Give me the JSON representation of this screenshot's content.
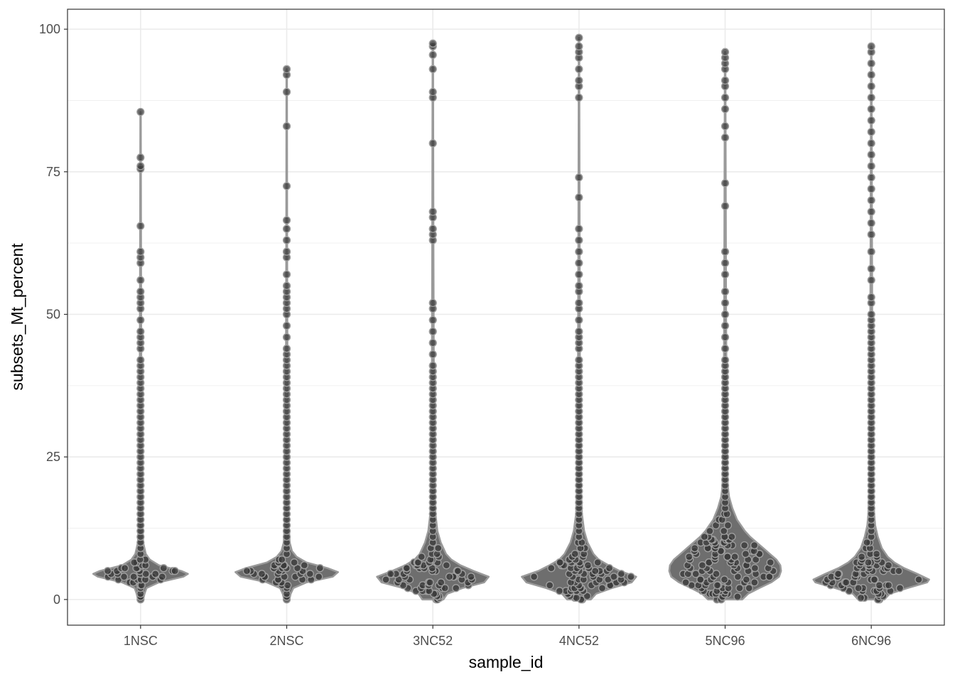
{
  "chart_data": {
    "type": "violin",
    "xlabel": "sample_id",
    "ylabel": "subsets_Mt_percent",
    "ylim": [
      -4.5,
      103.5
    ],
    "y_ticks": [
      0,
      25,
      50,
      75,
      100
    ],
    "grid": true,
    "categories": [
      "1NSC",
      "2NSC",
      "3NC52",
      "4NC52",
      "5NC96",
      "6NC96"
    ],
    "series": [
      {
        "category": "1NSC",
        "max": 85.5,
        "median": 4.5,
        "profile": [
          [
            0,
            0.04
          ],
          [
            1,
            0.06
          ],
          [
            2,
            0.09
          ],
          [
            3,
            0.28
          ],
          [
            4,
            0.65
          ],
          [
            4.5,
            0.72
          ],
          [
            5,
            0.62
          ],
          [
            6,
            0.28
          ],
          [
            7,
            0.14
          ],
          [
            8,
            0.08
          ],
          [
            10,
            0.04
          ],
          [
            15,
            0.025
          ],
          [
            20,
            0.02
          ],
          [
            40,
            0.012
          ],
          [
            60,
            0.008
          ],
          [
            85.5,
            0.004
          ]
        ],
        "points": [
          0,
          0.5,
          1,
          2,
          2.5,
          3,
          3.5,
          4,
          4.5,
          5,
          5.5,
          6,
          6.5,
          7,
          8,
          9,
          10,
          11,
          12,
          13,
          14,
          15,
          16,
          17,
          18,
          19,
          20,
          21,
          22,
          23,
          24,
          25,
          26,
          27,
          28,
          29,
          30,
          31,
          32,
          33,
          34,
          35,
          36,
          37,
          38,
          39,
          40,
          41,
          42,
          44,
          45,
          46,
          47,
          49,
          51,
          52,
          53,
          54,
          56,
          59,
          60,
          61,
          65.5,
          75.5,
          76,
          77.5,
          85.5
        ]
      },
      {
        "category": "2NSC",
        "max": 93,
        "median": 4.8,
        "profile": [
          [
            0,
            0.04
          ],
          [
            1,
            0.06
          ],
          [
            2,
            0.1
          ],
          [
            3,
            0.3
          ],
          [
            4,
            0.7
          ],
          [
            4.8,
            0.78
          ],
          [
            5.5,
            0.62
          ],
          [
            6.5,
            0.3
          ],
          [
            7.5,
            0.15
          ],
          [
            8.5,
            0.08
          ],
          [
            10,
            0.045
          ],
          [
            15,
            0.025
          ],
          [
            20,
            0.02
          ],
          [
            40,
            0.012
          ],
          [
            60,
            0.008
          ],
          [
            93,
            0.004
          ]
        ],
        "points": [
          0,
          0.5,
          1,
          2,
          2.5,
          3,
          3.5,
          4,
          4.5,
          5,
          5.5,
          6,
          6.5,
          7,
          8,
          9,
          10,
          11,
          12,
          13,
          14,
          15,
          16,
          17,
          18,
          19,
          20,
          21,
          22,
          23,
          24,
          25,
          26,
          27,
          28,
          29,
          30,
          31,
          32,
          33,
          34,
          35,
          36,
          37,
          38,
          39,
          40,
          41,
          42,
          43,
          44,
          46,
          48,
          50,
          51,
          52,
          53,
          54,
          55,
          57,
          60,
          61,
          63,
          65,
          66.5,
          72.5,
          83,
          89,
          92,
          93
        ]
      },
      {
        "category": "3NC52",
        "max": 97.5,
        "median": 4,
        "profile": [
          [
            0,
            0.16
          ],
          [
            1,
            0.22
          ],
          [
            2,
            0.45
          ],
          [
            3,
            0.78
          ],
          [
            4,
            0.85
          ],
          [
            5,
            0.62
          ],
          [
            6,
            0.42
          ],
          [
            7,
            0.28
          ],
          [
            8,
            0.2
          ],
          [
            10,
            0.12
          ],
          [
            12,
            0.07
          ],
          [
            15,
            0.04
          ],
          [
            20,
            0.025
          ],
          [
            40,
            0.015
          ],
          [
            60,
            0.01
          ],
          [
            97.5,
            0.004
          ]
        ],
        "points": [
          0,
          0.3,
          0.6,
          1,
          1.5,
          2,
          2.5,
          3,
          3.5,
          4,
          4.5,
          5,
          5.5,
          6,
          6.5,
          7,
          7.5,
          8,
          9,
          10,
          11,
          12,
          13,
          14,
          15,
          16,
          17,
          18,
          19,
          20,
          21,
          22,
          23,
          24,
          25,
          26,
          27,
          28,
          29,
          30,
          31,
          32,
          33,
          34,
          35,
          36,
          37,
          38,
          39,
          40,
          41,
          43,
          45,
          47,
          49,
          51,
          52,
          63,
          64,
          65,
          67,
          68,
          80,
          88,
          89,
          93,
          95.5,
          97,
          97.5
        ]
      },
      {
        "category": "4NC52",
        "max": 98.5,
        "median": 4,
        "profile": [
          [
            0,
            0.18
          ],
          [
            1,
            0.26
          ],
          [
            2,
            0.5
          ],
          [
            3,
            0.8
          ],
          [
            4,
            0.87
          ],
          [
            5,
            0.62
          ],
          [
            6,
            0.45
          ],
          [
            7,
            0.3
          ],
          [
            8,
            0.22
          ],
          [
            10,
            0.13
          ],
          [
            12,
            0.08
          ],
          [
            15,
            0.045
          ],
          [
            20,
            0.03
          ],
          [
            40,
            0.015
          ],
          [
            60,
            0.01
          ],
          [
            98.5,
            0.004
          ]
        ],
        "points": [
          0,
          0.3,
          0.6,
          1,
          1.5,
          2,
          2.5,
          3,
          3.5,
          4,
          4.5,
          5,
          5.5,
          6,
          6.5,
          7,
          7.5,
          8,
          9,
          10,
          11,
          12,
          13,
          14,
          15,
          16,
          17,
          18,
          19,
          20,
          21,
          22,
          23,
          24,
          25,
          26,
          27,
          28,
          29,
          30,
          31,
          32,
          33,
          34,
          35,
          36,
          37,
          38,
          39,
          40,
          41,
          42,
          44,
          45,
          46,
          47,
          49,
          51,
          52,
          54,
          55,
          57,
          59,
          61,
          63,
          65,
          70.5,
          74,
          88,
          90,
          91,
          93,
          95,
          96,
          97,
          98.5
        ]
      },
      {
        "category": "5NC96",
        "max": 96,
        "median": 6,
        "profile": [
          [
            0,
            0.26
          ],
          [
            1,
            0.35
          ],
          [
            2,
            0.52
          ],
          [
            3,
            0.7
          ],
          [
            4,
            0.82
          ],
          [
            5,
            0.85
          ],
          [
            6,
            0.84
          ],
          [
            7,
            0.78
          ],
          [
            8,
            0.68
          ],
          [
            9,
            0.58
          ],
          [
            10,
            0.48
          ],
          [
            11,
            0.38
          ],
          [
            12,
            0.3
          ],
          [
            14,
            0.18
          ],
          [
            16,
            0.11
          ],
          [
            18,
            0.06
          ],
          [
            20,
            0.04
          ],
          [
            30,
            0.025
          ],
          [
            50,
            0.015
          ],
          [
            96,
            0.004
          ]
        ],
        "points": [
          0,
          0.5,
          1,
          1.5,
          2,
          2.5,
          3,
          3.5,
          4,
          4.5,
          5,
          5.5,
          6,
          6.5,
          7,
          7.5,
          8,
          8.5,
          9,
          9.5,
          10,
          10.5,
          11,
          12,
          13,
          14,
          15,
          16,
          17,
          18,
          19,
          20,
          21,
          22,
          23,
          24,
          25,
          26,
          27,
          28,
          29,
          30,
          31,
          32,
          33,
          34,
          35,
          36,
          37,
          38,
          39,
          40,
          41,
          42,
          44,
          46,
          48,
          50,
          52,
          54,
          57,
          59,
          61,
          69,
          73,
          81,
          83,
          86,
          88,
          90,
          91,
          93,
          94,
          95,
          96
        ]
      },
      {
        "category": "6NC96",
        "max": 97,
        "median": 3.5,
        "profile": [
          [
            0,
            0.2
          ],
          [
            1,
            0.28
          ],
          [
            2,
            0.55
          ],
          [
            3,
            0.85
          ],
          [
            3.5,
            0.88
          ],
          [
            4.5,
            0.7
          ],
          [
            5.5,
            0.5
          ],
          [
            6.5,
            0.35
          ],
          [
            7.5,
            0.25
          ],
          [
            9,
            0.16
          ],
          [
            11,
            0.1
          ],
          [
            13,
            0.06
          ],
          [
            15,
            0.045
          ],
          [
            20,
            0.03
          ],
          [
            40,
            0.018
          ],
          [
            60,
            0.012
          ],
          [
            97,
            0.004
          ]
        ],
        "points": [
          0,
          0.3,
          0.6,
          1,
          1.5,
          2,
          2.5,
          3,
          3.5,
          4,
          4.5,
          5,
          5.5,
          6,
          6.5,
          7,
          7.5,
          8,
          9,
          10,
          11,
          12,
          13,
          14,
          15,
          16,
          17,
          18,
          19,
          20,
          21,
          22,
          23,
          24,
          25,
          26,
          27,
          28,
          29,
          30,
          31,
          32,
          33,
          34,
          35,
          36,
          37,
          38,
          39,
          40,
          41,
          42,
          43,
          44,
          45,
          46,
          47,
          48,
          49,
          50,
          52,
          53,
          56,
          58,
          61,
          64,
          66,
          68,
          70,
          72,
          74,
          76,
          78,
          80,
          82,
          84,
          86,
          88,
          90,
          92,
          94,
          96,
          97
        ]
      }
    ]
  }
}
